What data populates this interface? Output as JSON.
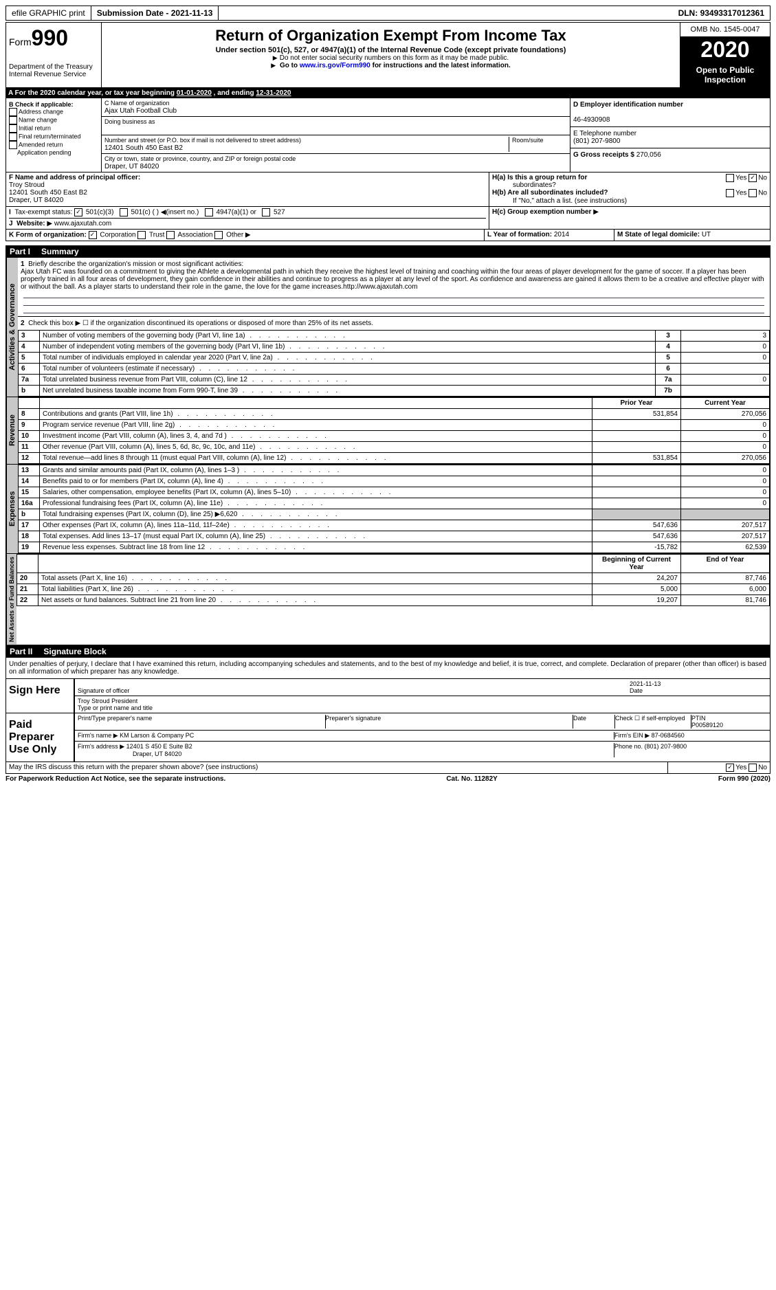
{
  "top": {
    "efile": "efile GRAPHIC print",
    "submission_label": "Submission Date - ",
    "submission_date": "2021-11-13",
    "dln_label": "DLN: ",
    "dln": "93493317012361"
  },
  "header": {
    "form_label": "Form",
    "form_number": "990",
    "dept": "Department of the Treasury\nInternal Revenue Service",
    "title": "Return of Organization Exempt From Income Tax",
    "subtitle": "Under section 501(c), 527, or 4947(a)(1) of the Internal Revenue Code (except private foundations)",
    "note1": "Do not enter social security numbers on this form as it may be made public.",
    "note2_pre": "Go to ",
    "note2_link": "www.irs.gov/Form990",
    "note2_post": " for instructions and the latest information.",
    "omb": "OMB No. 1545-0047",
    "year": "2020",
    "open_public": "Open to Public Inspection"
  },
  "period": {
    "text_pre": "For the 2020 calendar year, or tax year beginning ",
    "begin": "01-01-2020",
    "mid": " , and ending ",
    "end": "12-31-2020"
  },
  "box_b": {
    "label": "B Check if applicable:",
    "items": [
      "Address change",
      "Name change",
      "Initial return",
      "Final return/terminated",
      "Amended return",
      "Application pending"
    ]
  },
  "box_c": {
    "name_label": "C Name of organization",
    "name": "Ajax Utah Football Club",
    "dba_label": "Doing business as",
    "addr_label": "Number and street (or P.O. box if mail is not delivered to street address)",
    "room_label": "Room/suite",
    "addr": "12401 South 450 East B2",
    "city_label": "City or town, state or province, country, and ZIP or foreign postal code",
    "city": "Draper, UT  84020"
  },
  "box_d": {
    "label": "D Employer identification number",
    "value": "46-4930908"
  },
  "box_e": {
    "label": "E Telephone number",
    "value": "(801) 207-9800"
  },
  "box_g": {
    "label": "G Gross receipts $ ",
    "value": "270,056"
  },
  "box_f": {
    "label": "F Name and address of principal officer:",
    "name": "Troy Stroud",
    "addr1": "12401 South 450 East B2",
    "addr2": "Draper, UT  84020"
  },
  "box_h": {
    "a_label": "H(a)  Is this a group return for",
    "a_sub": "subordinates?",
    "b_label": "H(b)  Are all subordinates included?",
    "b_note": "If \"No,\" attach a list. (see instructions)",
    "c_label": "H(c)  Group exemption number",
    "yes": "Yes",
    "no": "No"
  },
  "box_i": {
    "label": "Tax-exempt status:",
    "opt1": "501(c)(3)",
    "opt2": "501(c) (   )",
    "opt2_note": "(insert no.)",
    "opt3": "4947(a)(1) or",
    "opt4": "527"
  },
  "box_j": {
    "label": "Website:",
    "value": "www.ajaxutah.com"
  },
  "box_k": {
    "label": "K Form of organization:",
    "opts": [
      "Corporation",
      "Trust",
      "Association",
      "Other"
    ]
  },
  "box_l": {
    "label": "L Year of formation: ",
    "value": "2014"
  },
  "box_m": {
    "label": "M State of legal domicile: ",
    "value": "UT"
  },
  "part1": {
    "header_num": "Part I",
    "header_title": "Summary",
    "vlabel_gov": "Activities & Governance",
    "vlabel_rev": "Revenue",
    "vlabel_exp": "Expenses",
    "vlabel_net": "Net Assets or Fund Balances",
    "line1_label": "Briefly describe the organization's mission or most significant activities:",
    "mission": "Ajax Utah FC was founded on a commitment to giving the Athlete a developmental path in which they receive the highest level of training and coaching within the four areas of player development for the game of soccer. If a player has been properly trained in all four areas of development, they gain confidence in their abilities and continue to progress as a player at any level of the sport. As confidence and awareness are gained it allows them to be a creative and effective player with or without the ball. As a player starts to understand their role in the game, the love for the game increases.http://www.ajaxutah.com",
    "line2": "Check this box ▶ ☐  if the organization discontinued its operations or disposed of more than 25% of its net assets.",
    "rows_gov": [
      {
        "n": "3",
        "t": "Number of voting members of the governing body (Part VI, line 1a)",
        "k": "3",
        "v": "3"
      },
      {
        "n": "4",
        "t": "Number of independent voting members of the governing body (Part VI, line 1b)",
        "k": "4",
        "v": "0"
      },
      {
        "n": "5",
        "t": "Total number of individuals employed in calendar year 2020 (Part V, line 2a)",
        "k": "5",
        "v": "0"
      },
      {
        "n": "6",
        "t": "Total number of volunteers (estimate if necessary)",
        "k": "6",
        "v": ""
      },
      {
        "n": "7a",
        "t": "Total unrelated business revenue from Part VIII, column (C), line 12",
        "k": "7a",
        "v": "0"
      },
      {
        "n": "b",
        "t": "Net unrelated business taxable income from Form 990-T, line 39",
        "k": "7b",
        "v": ""
      }
    ],
    "col_prior": "Prior Year",
    "col_current": "Current Year",
    "rows_rev": [
      {
        "n": "8",
        "t": "Contributions and grants (Part VIII, line 1h)",
        "p": "531,854",
        "c": "270,056"
      },
      {
        "n": "9",
        "t": "Program service revenue (Part VIII, line 2g)",
        "p": "",
        "c": "0"
      },
      {
        "n": "10",
        "t": "Investment income (Part VIII, column (A), lines 3, 4, and 7d )",
        "p": "",
        "c": "0"
      },
      {
        "n": "11",
        "t": "Other revenue (Part VIII, column (A), lines 5, 6d, 8c, 9c, 10c, and 11e)",
        "p": "",
        "c": "0"
      },
      {
        "n": "12",
        "t": "Total revenue—add lines 8 through 11 (must equal Part VIII, column (A), line 12)",
        "p": "531,854",
        "c": "270,056"
      }
    ],
    "rows_exp": [
      {
        "n": "13",
        "t": "Grants and similar amounts paid (Part IX, column (A), lines 1–3 )",
        "p": "",
        "c": "0"
      },
      {
        "n": "14",
        "t": "Benefits paid to or for members (Part IX, column (A), line 4)",
        "p": "",
        "c": "0"
      },
      {
        "n": "15",
        "t": "Salaries, other compensation, employee benefits (Part IX, column (A), lines 5–10)",
        "p": "",
        "c": "0"
      },
      {
        "n": "16a",
        "t": "Professional fundraising fees (Part IX, column (A), line 11e)",
        "p": "",
        "c": "0"
      },
      {
        "n": "b",
        "t": "Total fundraising expenses (Part IX, column (D), line 25) ▶6,620",
        "p": "SHADE",
        "c": "SHADE"
      },
      {
        "n": "17",
        "t": "Other expenses (Part IX, column (A), lines 11a–11d, 11f–24e)",
        "p": "547,636",
        "c": "207,517"
      },
      {
        "n": "18",
        "t": "Total expenses. Add lines 13–17 (must equal Part IX, column (A), line 25)",
        "p": "547,636",
        "c": "207,517"
      },
      {
        "n": "19",
        "t": "Revenue less expenses. Subtract line 18 from line 12",
        "p": "-15,782",
        "c": "62,539"
      }
    ],
    "col_begin": "Beginning of Current Year",
    "col_end": "End of Year",
    "rows_net": [
      {
        "n": "20",
        "t": "Total assets (Part X, line 16)",
        "p": "24,207",
        "c": "87,746"
      },
      {
        "n": "21",
        "t": "Total liabilities (Part X, line 26)",
        "p": "5,000",
        "c": "6,000"
      },
      {
        "n": "22",
        "t": "Net assets or fund balances. Subtract line 21 from line 20",
        "p": "19,207",
        "c": "81,746"
      }
    ]
  },
  "part2": {
    "header_num": "Part II",
    "header_title": "Signature Block",
    "perjury": "Under penalties of perjury, I declare that I have examined this return, including accompanying schedules and statements, and to the best of my knowledge and belief, it is true, correct, and complete. Declaration of preparer (other than officer) is based on all information of which preparer has any knowledge.",
    "sign_here": "Sign Here",
    "sig_officer": "Signature of officer",
    "sig_date": "Date",
    "sig_date_val": "2021-11-13",
    "officer_name": "Troy Stroud  President",
    "type_name": "Type or print name and title",
    "paid_prep": "Paid Preparer Use Only",
    "prep_name_label": "Print/Type preparer's name",
    "prep_sig_label": "Preparer's signature",
    "date_label": "Date",
    "check_self": "Check ☐ if self-employed",
    "ptin_label": "PTIN",
    "ptin": "P00589120",
    "firm_name_label": "Firm's name   ▶",
    "firm_name": "KM Larson & Company PC",
    "firm_ein_label": "Firm's EIN ▶",
    "firm_ein": "87-0684560",
    "firm_addr_label": "Firm's address ▶",
    "firm_addr": "12401 S 450 E Suite B2",
    "firm_city": "Draper, UT  84020",
    "phone_label": "Phone no. ",
    "phone": "(801) 207-9800",
    "discuss": "May the IRS discuss this return with the preparer shown above? (see instructions)"
  },
  "footer": {
    "left": "For Paperwork Reduction Act Notice, see the separate instructions.",
    "center": "Cat. No. 11282Y",
    "right": "Form 990 (2020)"
  }
}
